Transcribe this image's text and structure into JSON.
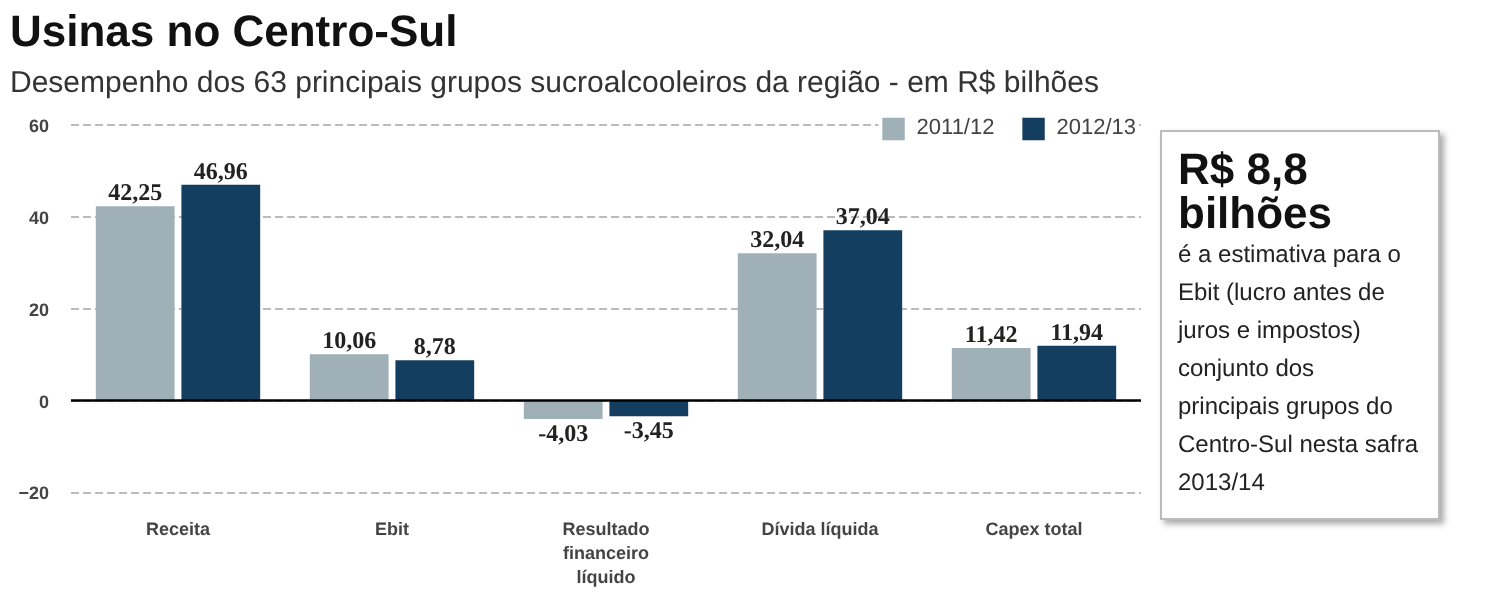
{
  "chart_data": {
    "type": "bar",
    "title": "Usinas no Centro-Sul",
    "subtitle": "Desempenho dos 63 principais grupos sucroalcooleiros da região - em R$ bilhões",
    "categories": [
      "Receita",
      "Ebit",
      "Resultado financeiro líquido",
      "Dívida líquida",
      "Capex total"
    ],
    "series": [
      {
        "name": "2011/12",
        "color": "#9fb0b7",
        "values": [
          42.25,
          10.06,
          -4.03,
          32.04,
          11.42
        ],
        "value_labels": [
          "42,25",
          "10,06",
          "-4,03",
          "32,04",
          "11,42"
        ]
      },
      {
        "name": "2012/13",
        "color": "#143e60",
        "values": [
          46.96,
          8.78,
          -3.45,
          37.04,
          11.94
        ],
        "value_labels": [
          "46,96",
          "8,78",
          "-3,45",
          "37,04",
          "11,94"
        ]
      }
    ],
    "ylim": [
      -21,
      63
    ],
    "yticks": [
      -20,
      0,
      20,
      40,
      60
    ],
    "grid": "y",
    "legend": "top right",
    "annotations": [
      "R$ 8,8 bilhões",
      "é a estimativa para o Ebit (lucro antes de juros e impostos) conjunto dos principais grupos do Centro-Sul nesta safra 2013/14"
    ]
  }
}
